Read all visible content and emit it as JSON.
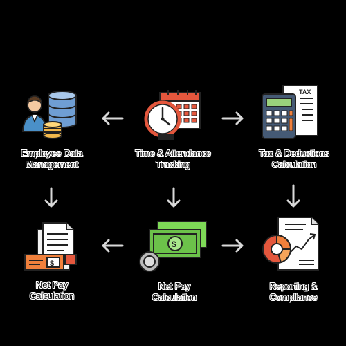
{
  "colors": {
    "background": "#000000",
    "label_text": "#111111",
    "label_outline": "#ffffff",
    "arrow": "#d9d9d9",
    "accent_red": "#e4573d",
    "accent_orange": "#f0803c",
    "money_green": "#7ed957",
    "coin_gold": "#f2b84b",
    "db_blue": "#6f9ed3",
    "calc_screen": "#9ad17c"
  },
  "steps": [
    {
      "id": "employee-data",
      "line1": "Employee Data",
      "line2": "Management",
      "icon": "database-user-icon"
    },
    {
      "id": "time-attendance",
      "line1": "Time & Attendance",
      "line2": "Tracking",
      "icon": "clock-calendar-icon"
    },
    {
      "id": "tax-deductions",
      "line1": "Tax & Deductions",
      "line2": "Calculation",
      "icon": "calculator-tax-icon"
    },
    {
      "id": "net-pay-left",
      "line1": "Net Pay",
      "line2": "Calculation",
      "icon": "payslip-check-icon"
    },
    {
      "id": "net-pay-center",
      "line1": "Net Pay",
      "line2": "Calculation",
      "icon": "money-bills-icon"
    },
    {
      "id": "reporting",
      "line1": "Reporting &",
      "line2": "Compliance",
      "icon": "report-chart-icon"
    }
  ],
  "icon_text": {
    "tax": "TAX"
  }
}
